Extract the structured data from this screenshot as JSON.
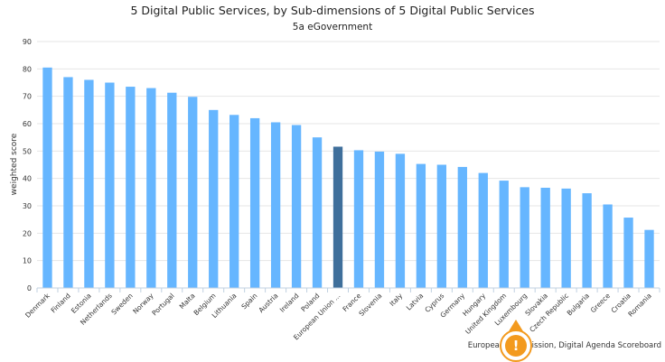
{
  "chart_data": {
    "type": "bar",
    "title": "5 Digital Public Services, by Sub-dimensions of 5 Digital Public Services",
    "subtitle": "5a eGovernment",
    "xlabel": "",
    "ylabel": "weighted score",
    "ylim": [
      0,
      90
    ],
    "yticks": [
      0,
      10,
      20,
      30,
      40,
      50,
      60,
      70,
      80,
      90
    ],
    "grid": true,
    "categories": [
      "Denmark",
      "Finland",
      "Estonia",
      "Netherlands",
      "Sweden",
      "Norway",
      "Portugal",
      "Malta",
      "Belgium",
      "Lithuania",
      "Spain",
      "Austria",
      "Ireland",
      "Poland",
      "European Union ...",
      "France",
      "Slovenia",
      "Italy",
      "Latvia",
      "Cyprus",
      "Germany",
      "Hungary",
      "United Kingdom",
      "Luxembourg",
      "Slovakia",
      "Czech Republic",
      "Bulgaria",
      "Greece",
      "Croatia",
      "Romania"
    ],
    "values": [
      80.5,
      77,
      76,
      75,
      73.5,
      73,
      71.3,
      69.8,
      65,
      63.2,
      62,
      60.5,
      59.5,
      55,
      51.6,
      50.3,
      49.8,
      49,
      45.3,
      45,
      44.2,
      42,
      39.2,
      36.8,
      36.6,
      36.3,
      34.6,
      30.5,
      25.7,
      21.2
    ],
    "highlight_category": "European Union ...",
    "colors": {
      "bar": "#66b6ff",
      "highlight": "#3f6f9b",
      "grid": "#e6e6e6",
      "axis": "#c0d0e0"
    }
  },
  "credits": "European Commission, Digital Agenda Scoreboard",
  "warning_badge": {
    "glyph": "!",
    "color": "#f39a1e"
  }
}
